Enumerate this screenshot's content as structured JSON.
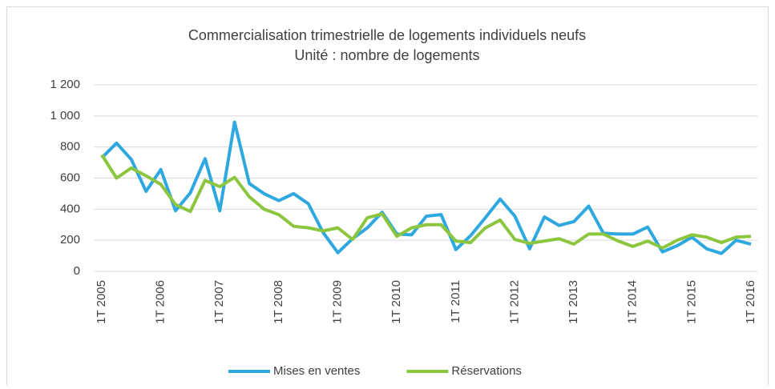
{
  "chart_data": {
    "type": "line",
    "title": "Commercialisation trimestrielle de logements individuels neufs",
    "subtitle": "Unité : nombre de logements",
    "categories": [
      "1T 2005",
      null,
      null,
      null,
      "1T 2006",
      null,
      null,
      null,
      "1T 2007",
      null,
      null,
      null,
      "1T 2008",
      null,
      null,
      null,
      "1T 2009",
      null,
      null,
      null,
      "1T 2010",
      null,
      null,
      null,
      "1T 2011",
      null,
      null,
      null,
      "1T 2012",
      null,
      null,
      null,
      "1T 2013",
      null,
      null,
      null,
      "1T 2014",
      null,
      null,
      null,
      "1T 2015",
      null,
      null,
      null,
      "1T 2016"
    ],
    "series": [
      {
        "name": "Mises en ventes",
        "color": "#2fa8e0",
        "values": [
          730,
          825,
          720,
          515,
          655,
          390,
          505,
          725,
          390,
          960,
          565,
          500,
          455,
          500,
          435,
          250,
          120,
          210,
          280,
          380,
          240,
          235,
          355,
          365,
          140,
          230,
          345,
          465,
          355,
          145,
          350,
          295,
          320,
          420,
          245,
          240,
          240,
          285,
          125,
          165,
          220,
          145,
          115,
          200,
          175
        ]
      },
      {
        "name": "Réservations",
        "color": "#8cc63f",
        "values": [
          750,
          600,
          665,
          615,
          560,
          430,
          385,
          585,
          545,
          605,
          480,
          400,
          365,
          290,
          280,
          260,
          280,
          205,
          345,
          370,
          225,
          280,
          300,
          300,
          195,
          185,
          280,
          330,
          205,
          180,
          195,
          210,
          175,
          240,
          240,
          195,
          160,
          195,
          150,
          200,
          235,
          220,
          185,
          220,
          225
        ]
      }
    ],
    "ylim": [
      0,
      1200
    ],
    "yticks": [
      0,
      200,
      400,
      600,
      800,
      {
        "value": 1000,
        "label": "1 000"
      },
      {
        "value": 1200,
        "label": "1 200"
      }
    ],
    "grid": true,
    "legend": "bottom"
  }
}
